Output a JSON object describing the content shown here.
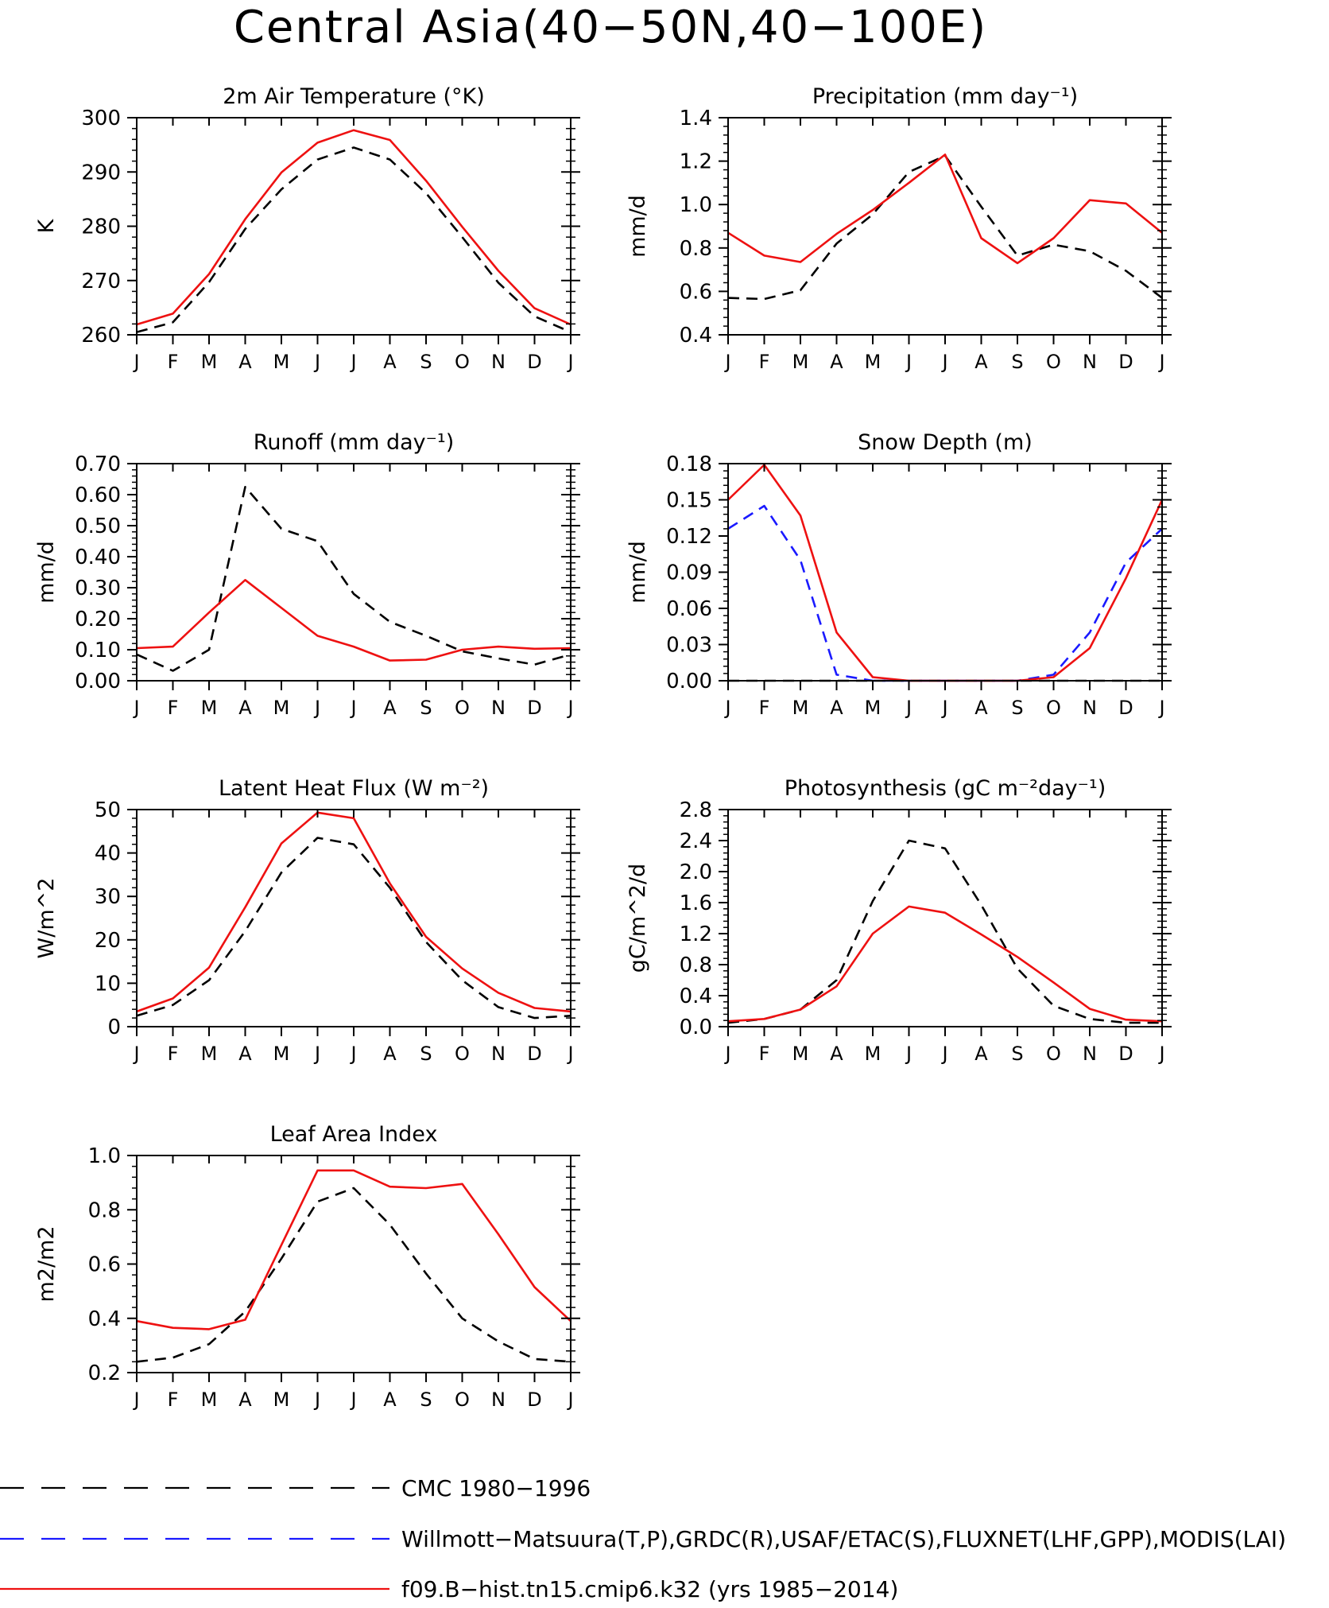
{
  "figure_title": "Central Asia(40−50N,40−100E)",
  "months": [
    "J",
    "F",
    "M",
    "A",
    "M",
    "J",
    "J",
    "A",
    "S",
    "O",
    "N",
    "D",
    "J"
  ],
  "colors": {
    "obs": "#000000",
    "obs2": "#1a1aff",
    "model": "#ee1111"
  },
  "chart_data": [
    {
      "type": "line",
      "title": "2m Air Temperature (°K)",
      "ylabel": "K",
      "ylim": [
        260,
        300
      ],
      "yticks": [
        "260",
        "270",
        "280",
        "290",
        "300"
      ],
      "series": [
        {
          "style": "obs",
          "values": [
            260.5,
            262.3,
            269.7,
            279.5,
            286.8,
            292.3,
            294.5,
            292.3,
            286.1,
            278.0,
            269.6,
            263.4,
            260.5
          ]
        },
        {
          "style": "model",
          "values": [
            261.9,
            263.9,
            271.2,
            281.3,
            289.9,
            295.4,
            297.7,
            295.9,
            288.4,
            279.9,
            271.8,
            264.9,
            261.9
          ]
        }
      ]
    },
    {
      "type": "line",
      "title": "Precipitation (mm day⁻¹)",
      "ylabel": "mm/d",
      "ylim": [
        0.4,
        1.4
      ],
      "yticks": [
        "0.4",
        "0.6",
        "0.8",
        "1.0",
        "1.2",
        "1.4"
      ],
      "series": [
        {
          "style": "obs",
          "values": [
            0.57,
            0.565,
            0.605,
            0.82,
            0.955,
            1.15,
            1.225,
            0.99,
            0.765,
            0.815,
            0.785,
            0.695,
            0.57
          ]
        },
        {
          "style": "model",
          "values": [
            0.87,
            0.765,
            0.735,
            0.865,
            0.975,
            1.1,
            1.23,
            0.845,
            0.73,
            0.845,
            1.02,
            1.005,
            0.87
          ]
        }
      ]
    },
    {
      "type": "line",
      "title": "Runoff (mm day⁻¹)",
      "ylabel": "mm/d",
      "ylim": [
        0,
        0.7
      ],
      "yticks": [
        "0.00",
        "0.10",
        "0.20",
        "0.30",
        "0.40",
        "0.50",
        "0.60",
        "0.70"
      ],
      "series": [
        {
          "style": "obs",
          "values": [
            0.085,
            0.032,
            0.1,
            0.625,
            0.49,
            0.45,
            0.28,
            0.19,
            0.145,
            0.095,
            0.072,
            0.052,
            0.085
          ]
        },
        {
          "style": "model",
          "values": [
            0.105,
            0.11,
            0.22,
            0.325,
            0.235,
            0.145,
            0.11,
            0.065,
            0.068,
            0.1,
            0.11,
            0.103,
            0.105
          ]
        }
      ]
    },
    {
      "type": "line",
      "title": "Snow Depth (m)",
      "ylabel": "mm/d",
      "ylim": [
        0,
        0.18
      ],
      "yticks": [
        "0.00",
        "0.03",
        "0.06",
        "0.09",
        "0.12",
        "0.15",
        "0.18"
      ],
      "series": [
        {
          "style": "obs",
          "values": [
            0,
            0,
            0,
            0,
            0,
            0,
            0,
            0,
            0,
            0,
            0,
            0,
            0
          ]
        },
        {
          "style": "obs2",
          "values": [
            0.126,
            0.145,
            0.1,
            0.005,
            0,
            0,
            0,
            0,
            0,
            0.005,
            0.04,
            0.098,
            0.126
          ]
        },
        {
          "style": "model",
          "values": [
            0.15,
            0.179,
            0.137,
            0.04,
            0.003,
            0,
            0,
            0,
            0,
            0.003,
            0.027,
            0.085,
            0.15
          ]
        }
      ]
    },
    {
      "type": "line",
      "title": "Latent Heat Flux (W m⁻²)",
      "ylabel": "W/m^2",
      "ylim": [
        0,
        50
      ],
      "yticks": [
        "0",
        "10",
        "20",
        "30",
        "40",
        "50"
      ],
      "series": [
        {
          "style": "obs",
          "values": [
            2.5,
            5.0,
            10.7,
            22.0,
            35.5,
            43.5,
            42.0,
            32.0,
            19.5,
            10.7,
            4.5,
            2.0,
            2.5
          ]
        },
        {
          "style": "model",
          "values": [
            3.5,
            6.5,
            13.6,
            27.5,
            42.2,
            49.3,
            48.0,
            33.0,
            20.7,
            13.4,
            7.8,
            4.3,
            3.5
          ]
        }
      ]
    },
    {
      "type": "line",
      "title": "Photosynthesis (gC m⁻²day⁻¹)",
      "ylabel": "gC/m^2/d",
      "ylim": [
        0,
        2.8
      ],
      "yticks": [
        "0.0",
        "0.4",
        "0.8",
        "1.2",
        "1.6",
        "2.0",
        "2.4",
        "2.8"
      ],
      "series": [
        {
          "style": "obs",
          "values": [
            0.05,
            0.1,
            0.22,
            0.6,
            1.62,
            2.4,
            2.3,
            1.57,
            0.75,
            0.27,
            0.1,
            0.05,
            0.05
          ]
        },
        {
          "style": "model",
          "values": [
            0.07,
            0.1,
            0.22,
            0.52,
            1.2,
            1.55,
            1.47,
            1.19,
            0.9,
            0.57,
            0.23,
            0.09,
            0.07
          ]
        }
      ]
    },
    {
      "type": "line",
      "title": "Leaf Area Index",
      "ylabel": "m2/m2",
      "ylim": [
        0.2,
        1.0
      ],
      "yticks": [
        "0.2",
        "0.4",
        "0.6",
        "0.8",
        "1.0"
      ],
      "series": [
        {
          "style": "obs",
          "values": [
            0.24,
            0.255,
            0.305,
            0.425,
            0.62,
            0.83,
            0.88,
            0.745,
            0.565,
            0.4,
            0.315,
            0.25,
            0.24
          ]
        },
        {
          "style": "model",
          "values": [
            0.39,
            0.365,
            0.36,
            0.395,
            0.67,
            0.945,
            0.945,
            0.885,
            0.88,
            0.895,
            0.71,
            0.515,
            0.39
          ]
        }
      ]
    }
  ],
  "legend": [
    {
      "style": "obs",
      "label": "CMC 1980−1996"
    },
    {
      "style": "obs2",
      "label": "Willmott−Matsuura(T,P),GRDC(R),USAF/ETAC(S),FLUXNET(LHF,GPP),MODIS(LAI)"
    },
    {
      "style": "model",
      "label": "f09.B−hist.tn15.cmip6.k32 (yrs 1985−2014)"
    }
  ]
}
